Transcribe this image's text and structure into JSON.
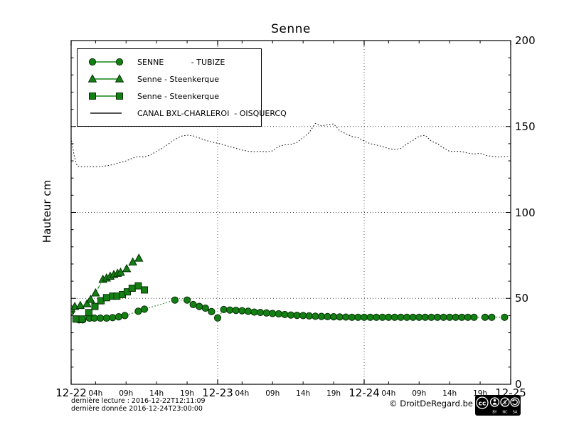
{
  "chart_data": {
    "type": "line",
    "title": "Senne",
    "ylabel": "Hauteur cm",
    "xlabel": "",
    "ylim": [
      0,
      200
    ],
    "yticks_major": [
      0,
      50,
      100,
      150,
      200
    ],
    "ytick_minor_step": 10,
    "x_unit_hours_from": "2016-12-22 00:00",
    "xlim_hours": [
      0,
      72
    ],
    "grid": {
      "horizontal_dotted": [
        50,
        100,
        150
      ],
      "vertical_dotted": [
        24,
        48
      ]
    },
    "legend_position": "upper left",
    "day_ticks": [
      {
        "h": 0,
        "label": "12-22"
      },
      {
        "h": 24,
        "label": "12-23"
      },
      {
        "h": 48,
        "label": "12-24"
      },
      {
        "h": 72,
        "label": "12-25"
      }
    ],
    "hour_ticks": [
      {
        "h": 4,
        "label": "04h"
      },
      {
        "h": 9,
        "label": "09h"
      },
      {
        "h": 14,
        "label": "14h"
      },
      {
        "h": 19,
        "label": "19h"
      },
      {
        "h": 28,
        "label": "04h"
      },
      {
        "h": 33,
        "label": "09h"
      },
      {
        "h": 38,
        "label": "14h"
      },
      {
        "h": 43,
        "label": "19h"
      },
      {
        "h": 52,
        "label": "04h"
      },
      {
        "h": 57,
        "label": "09h"
      },
      {
        "h": 62,
        "label": "14h"
      },
      {
        "h": 67,
        "label": "19h"
      }
    ],
    "series": [
      {
        "name": "SENNE - TUBIZE",
        "marker": "circle",
        "color": "#148014",
        "edge": "#042f04",
        "linestyle": "dotted",
        "points": [
          [
            0,
            42.5
          ],
          [
            0.8,
            38
          ],
          [
            1.3,
            37.5
          ],
          [
            1.9,
            37.5
          ],
          [
            3,
            38.5
          ],
          [
            3.8,
            38.5
          ],
          [
            4.8,
            38.5
          ],
          [
            5.8,
            38.5
          ],
          [
            6.8,
            38.8
          ],
          [
            7.8,
            39.3
          ],
          [
            8.8,
            40
          ],
          [
            11,
            42.5
          ],
          [
            12,
            43.7
          ],
          [
            17,
            49
          ],
          [
            19,
            49
          ],
          [
            20,
            46.4
          ],
          [
            21,
            45.3
          ],
          [
            22,
            44.3
          ],
          [
            23,
            42.3
          ],
          [
            24,
            38.6
          ],
          [
            25,
            43.5
          ],
          [
            26,
            43.2
          ],
          [
            27,
            43
          ],
          [
            28,
            42.8
          ],
          [
            29,
            42.5
          ],
          [
            30,
            42
          ],
          [
            31,
            41.8
          ],
          [
            32,
            41.5
          ],
          [
            33,
            41.2
          ],
          [
            34,
            41
          ],
          [
            35,
            40.6
          ],
          [
            36,
            40.3
          ],
          [
            37,
            40.1
          ],
          [
            38,
            40
          ],
          [
            39,
            39.8
          ],
          [
            40,
            39.6
          ],
          [
            41,
            39.5
          ],
          [
            42,
            39.4
          ],
          [
            43,
            39.3
          ],
          [
            44,
            39.2
          ],
          [
            45,
            39.1
          ],
          [
            46,
            39
          ],
          [
            47,
            39
          ],
          [
            48,
            39
          ],
          [
            49,
            39
          ],
          [
            50,
            39
          ],
          [
            51,
            39
          ],
          [
            52,
            39
          ],
          [
            53,
            39
          ],
          [
            54,
            39
          ],
          [
            55,
            39
          ],
          [
            56,
            39
          ],
          [
            57,
            39
          ],
          [
            58,
            39
          ],
          [
            59,
            39
          ],
          [
            60,
            39
          ],
          [
            61,
            39
          ],
          [
            62,
            39
          ],
          [
            63,
            39
          ],
          [
            64,
            39
          ],
          [
            65,
            39
          ],
          [
            66,
            39
          ],
          [
            67.8,
            39
          ],
          [
            68.9,
            39
          ],
          [
            71,
            39
          ]
        ]
      },
      {
        "name": "Senne - Steenkerque",
        "marker": "triangle",
        "color": "#148014",
        "edge": "#042f04",
        "linestyle": "dashdot",
        "points": [
          [
            0,
            44
          ],
          [
            0.6,
            45.2
          ],
          [
            1.5,
            45.8
          ],
          [
            2.6,
            46.8
          ],
          [
            3.2,
            49.3
          ],
          [
            4,
            53.1
          ],
          [
            5.2,
            61
          ],
          [
            5.8,
            61.8
          ],
          [
            6.4,
            62.8
          ],
          [
            7,
            63.8
          ],
          [
            7.6,
            64.5
          ],
          [
            8.1,
            65.1
          ],
          [
            9.1,
            67.2
          ],
          [
            10.1,
            71.1
          ],
          [
            11.1,
            73.3
          ]
        ]
      },
      {
        "name": "Senne - Steenkerque",
        "marker": "square",
        "color": "#148014",
        "edge": "#042f04",
        "linestyle": "dashdot",
        "points": [
          [
            0.8,
            38
          ],
          [
            1.8,
            38
          ],
          [
            2.9,
            41.7
          ],
          [
            3.9,
            45.3
          ],
          [
            4.9,
            48.6
          ],
          [
            5.8,
            50.4
          ],
          [
            6.8,
            51.3
          ],
          [
            7.5,
            51.3
          ],
          [
            8.4,
            52.2
          ],
          [
            9.2,
            53.8
          ],
          [
            10,
            55.9
          ],
          [
            11,
            57.3
          ],
          [
            12,
            54.9
          ]
        ]
      },
      {
        "name": "CANAL BXL-CHARLEROI - OISQUERCQ",
        "marker": "none",
        "color": "#1c1c1c",
        "edge": "#1c1c1c",
        "linestyle": "dotted",
        "points": [
          [
            0,
            143.5
          ],
          [
            0.2,
            139
          ],
          [
            0.5,
            133
          ],
          [
            0.8,
            129
          ],
          [
            1,
            127
          ],
          [
            1.5,
            126.6
          ],
          [
            2,
            126.6
          ],
          [
            3,
            126.6
          ],
          [
            4,
            126.6
          ],
          [
            5,
            126.8
          ],
          [
            6,
            127.2
          ],
          [
            7,
            128
          ],
          [
            8,
            129
          ],
          [
            9,
            130
          ],
          [
            10,
            131.5
          ],
          [
            11,
            132.5
          ],
          [
            12,
            132.2
          ],
          [
            13,
            133.5
          ],
          [
            14,
            135.5
          ],
          [
            15,
            137.5
          ],
          [
            16,
            140
          ],
          [
            17,
            142.5
          ],
          [
            18,
            144.3
          ],
          [
            19,
            145
          ],
          [
            20,
            144.5
          ],
          [
            21,
            143.3
          ],
          [
            22,
            142
          ],
          [
            23,
            141
          ],
          [
            24,
            140.3
          ],
          [
            25,
            139.3
          ],
          [
            26,
            138.3
          ],
          [
            27,
            137.3
          ],
          [
            28,
            136.3
          ],
          [
            29,
            135.6
          ],
          [
            30,
            135.3
          ],
          [
            31,
            135.5
          ],
          [
            32,
            135.3
          ],
          [
            33,
            135.8
          ],
          [
            34,
            138.5
          ],
          [
            35,
            139.3
          ],
          [
            36,
            139.6
          ],
          [
            37,
            140.8
          ],
          [
            38,
            143.5
          ],
          [
            39,
            146.5
          ],
          [
            40,
            151.8
          ],
          [
            41,
            150.4
          ],
          [
            42,
            151
          ],
          [
            43,
            151.5
          ],
          [
            44,
            147.5
          ],
          [
            45,
            145.8
          ],
          [
            46,
            144.2
          ],
          [
            47,
            143.5
          ],
          [
            48,
            141.5
          ],
          [
            49,
            140
          ],
          [
            50,
            139.2
          ],
          [
            51,
            138.3
          ],
          [
            52,
            137.2
          ],
          [
            53,
            136.6
          ],
          [
            54,
            137.2
          ],
          [
            55,
            139.8
          ],
          [
            56,
            142
          ],
          [
            57,
            144.3
          ],
          [
            58,
            144.9
          ],
          [
            59,
            141.5
          ],
          [
            60,
            140
          ],
          [
            61,
            137.5
          ],
          [
            62,
            135.5
          ],
          [
            63,
            135.6
          ],
          [
            64,
            135.4
          ],
          [
            65,
            134.5
          ],
          [
            66,
            134
          ],
          [
            67,
            134.4
          ],
          [
            68,
            133.1
          ],
          [
            69,
            132.6
          ],
          [
            70,
            132.2
          ],
          [
            71.5,
            132.6
          ]
        ]
      }
    ]
  },
  "legend": {
    "items": [
      {
        "label": "SENNE           - TUBIZE",
        "marker": "circle"
      },
      {
        "label": "Senne - Steenkerque",
        "marker": "triangle"
      },
      {
        "label": "Senne - Steenkerque",
        "marker": "square"
      },
      {
        "label": "CANAL BXL-CHARLEROI  - OISQUERCQ",
        "marker": "line"
      }
    ]
  },
  "footer": {
    "derniere_lecture": "dernière lecture : 2016-12-22T12:11:09",
    "derniere_donnee": "dernière donnée  2016-12-24T23:00:00",
    "copyright": "© DroitDeRegard.be",
    "cc": {
      "cc": "cc",
      "by": "BY",
      "nc": "NC",
      "sa": "SA"
    }
  },
  "colors": {
    "series_green": "#148014",
    "series_green_edge": "#042f04",
    "canal_black": "#1c1c1c",
    "axis": "#000000"
  }
}
